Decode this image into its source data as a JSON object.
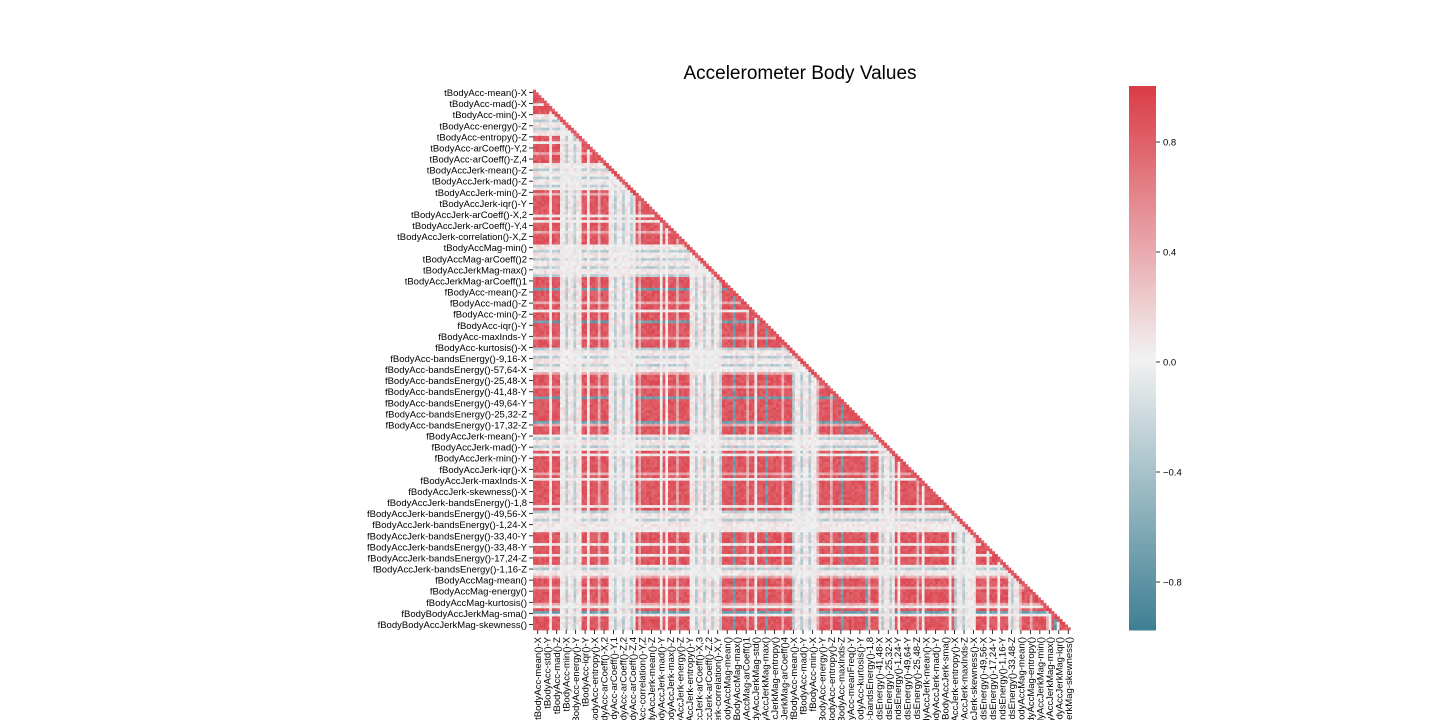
{
  "chart_data": {
    "type": "heatmap",
    "title": "Accelerometer Body Values",
    "mask": "upper-triangle",
    "n_features": 200,
    "y_tick_labels": [
      "tBodyAcc-mean()-X",
      "tBodyAcc-mad()-X",
      "tBodyAcc-min()-X",
      "tBodyAcc-energy()-Z",
      "tBodyAcc-entropy()-Z",
      "tBodyAcc-arCoeff()-Y,2",
      "tBodyAcc-arCoeff()-Z,4",
      "tBodyAccJerk-mean()-Z",
      "tBodyAccJerk-mad()-Z",
      "tBodyAccJerk-min()-Z",
      "tBodyAccJerk-iqr()-Y",
      "tBodyAccJerk-arCoeff()-X,2",
      "tBodyAccJerk-arCoeff()-Y,4",
      "tBodyAccJerk-correlation()-X,Z",
      "tBodyAccMag-min()",
      "tBodyAccMag-arCoeff()2",
      "tBodyAccJerkMag-max()",
      "tBodyAccJerkMag-arCoeff()1",
      "fBodyAcc-mean()-Z",
      "fBodyAcc-mad()-Z",
      "fBodyAcc-min()-Z",
      "fBodyAcc-iqr()-Y",
      "fBodyAcc-maxInds-Y",
      "fBodyAcc-kurtosis()-X",
      "fBodyAcc-bandsEnergy()-9,16-X",
      "fBodyAcc-bandsEnergy()-57,64-X",
      "fBodyAcc-bandsEnergy()-25,48-X",
      "fBodyAcc-bandsEnergy()-41,48-Y",
      "fBodyAcc-bandsEnergy()-49,64-Y",
      "fBodyAcc-bandsEnergy()-25,32-Z",
      "fBodyAcc-bandsEnergy()-17,32-Z",
      "fBodyAccJerk-mean()-Y",
      "fBodyAccJerk-mad()-Y",
      "fBodyAccJerk-min()-Y",
      "fBodyAccJerk-iqr()-X",
      "fBodyAccJerk-maxInds-X",
      "fBodyAccJerk-skewness()-X",
      "fBodyAccJerk-bandsEnergy()-1,8",
      "fBodyAccJerk-bandsEnergy()-49,56-X",
      "fBodyAccJerk-bandsEnergy()-1,24-X",
      "fBodyAccJerk-bandsEnergy()-33,40-Y",
      "fBodyAccJerk-bandsEnergy()-33,48-Y",
      "fBodyAccJerk-bandsEnergy()-17,24-Z",
      "fBodyAccJerk-bandsEnergy()-1,16-Z",
      "fBodyAccMag-mean()",
      "fBodyAccMag-energy()",
      "fBodyAccMag-kurtosis()",
      "fBodyBodyAccJerkMag-sma()",
      "fBodyBodyAccJerkMag-skewness()"
    ],
    "x_tick_labels": [
      "tBodyAcc-mean()-X",
      "tBodyAcc-std()-Y",
      "tBodyAcc-mad()-Z",
      "tBodyAcc-min()-X",
      "tBodyAcc-energy()-Y",
      "tBodyAcc-iqr()-Y",
      "tBodyAcc-entropy()-X",
      "tBodyAcc-arCoeff()-X,2",
      "tBodyAcc-arCoeff()-Y,1",
      "tBodyAcc-arCoeff()-Z,2",
      "tBodyAcc-arCoeff()-Z,4",
      "tBodyAcc-correlation()-Y,Z",
      "tBodyAccJerk-mean()-Z",
      "tBodyAccJerk-mad()-Y",
      "tBodyAccJerk-max()-Z",
      "tBodyAccJerk-energy()-Z",
      "tBodyAccJerk-entropy()-Y",
      "tBodyAccJerk-arCoeff()-X,3",
      "tBodyAccJerk-arCoeff()-Z,2",
      "tBodyAccJerk-correlation()-X,Y",
      "tBodyAccMag-mean()",
      "tBodyAccMag-max()",
      "tBodyAccMag-arCoeff()1",
      "tBodyAccJerkMag-std()",
      "tBodyAccJerkMag-max()",
      "tBodyAccJerkMag-entropy()",
      "tBodyAccJerkMag-arCoeff()4",
      "fBodyAcc-mean()-X",
      "fBodyAcc-mad()-Y",
      "fBodyAcc-min()-X",
      "fBodyAcc-energy()-Y",
      "fBodyAcc-entropy()-Z",
      "fBodyAcc-maxInds-Z",
      "fBodyAcc-meanFreq()-Y",
      "fBodyAcc-kurtosis()-Y",
      "fBodyAcc-bandsEnergy()-1,8",
      "fBodyAcc-bandsEnergy()-41,48-X",
      "fBodyAcc-bandsEnergy()-25,32-X",
      "fBodyAcc-bandsEnergy()-1,24-Y",
      "fBodyAcc-bandsEnergy()-49,64-Y",
      "fBodyAcc-bandsEnergy()-25,48-Z",
      "fBodyAccJerk-mean()-X",
      "fBodyAccJerk-mad()-Y",
      "fBodyAccJerk-sma()",
      "fBodyAccJerk-entropy()-X",
      "fBodyAccJerk-maxInds-Z",
      "fBodyAccJerk-skewness()-X",
      "fBodyAccJerk-bandsEnergy()-49,56-X",
      "fBodyAccJerk-bandsEnergy()-17,24-Y",
      "fBodyAccJerk-bandsEnergy()-1,16-Y",
      "fBodyAccJerk-bandsEnergy()-33,48-Z",
      "fBodyAccMag-mean()",
      "fBodyAccMag-entropy()",
      "fBodyBodyAccJerkMag-min()",
      "fBodyBodyAccJerkMag-max()",
      "fBodyBodyAccJerkMag-iqr()",
      "fBodyBodyAccJerkMag-skewness()"
    ],
    "colorbar": {
      "vmin": -1.0,
      "vmax": 1.0,
      "ticks": [
        -0.8,
        -0.4,
        0.0,
        0.4,
        0.8
      ],
      "tick_labels": [
        "−0.8",
        "−0.4",
        "0.0",
        "0.4",
        "0.8"
      ],
      "low_color": "#3f7f93",
      "mid_color": "#f2f2f2",
      "high_color": "#da3b46"
    }
  }
}
